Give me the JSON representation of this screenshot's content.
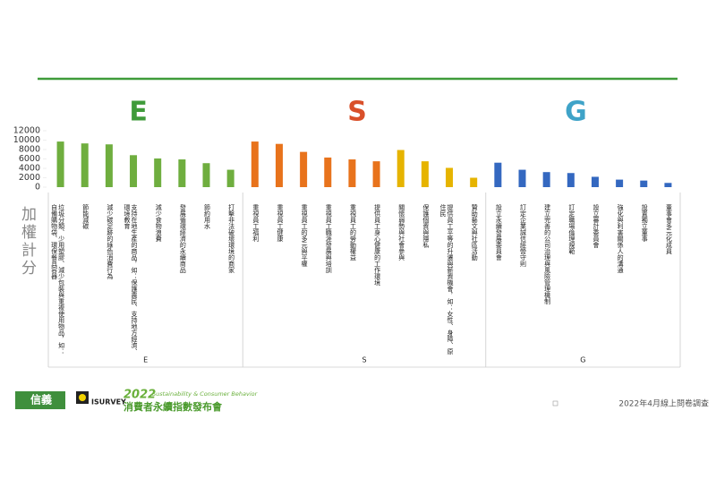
{
  "chart_data": {
    "type": "bar",
    "y_label": "加權計分",
    "ylim": [
      0,
      12000
    ],
    "yticks": [
      0,
      2000,
      4000,
      6000,
      8000,
      10000,
      12000
    ],
    "groups": [
      {
        "name": "E",
        "color": "#3f9b3a",
        "categories": [
          "垃圾分類、少用塑膠、減少包裝與重複使用物品，如：自備購物袋、環保餐具容器",
          "節能減碳",
          "減少碳足跡的綠色消費行為",
          "支持在地生產的商品，如：保護農民、支持地方經濟、環境教育",
          "減少食物浪費",
          "發展循環經濟的永續商品",
          "節約用水",
          "打擊非法破壞環境的商家"
        ],
        "values": [
          9700,
          9300,
          9100,
          6800,
          6100,
          5900,
          5100,
          3700
        ],
        "colors": [
          "#6fae3f",
          "#6fae3f",
          "#6fae3f",
          "#6fae3f",
          "#6fae3f",
          "#6fae3f",
          "#6fae3f",
          "#6fae3f"
        ]
      },
      {
        "name": "S",
        "color": "#d9502a",
        "categories": [
          "重視員工福利",
          "重視員工健康",
          "重視員工的多元與平權",
          "重視員工職涯發展與培訓",
          "重視員工的勞動權益",
          "提供員工身心健康的工作環境",
          "關懷弱勢與社會參與",
          "保護個資與隱私",
          "提供員工平等的升遷與薪資機會，如：女性、身障、原住民",
          "贊助藝文與社區活動"
        ],
        "values": [
          9700,
          9200,
          7500,
          6300,
          5900,
          5500,
          7900,
          5500,
          4100,
          2000
        ],
        "colors": [
          "#e8731c",
          "#e8731c",
          "#e8731c",
          "#e8731c",
          "#e8731c",
          "#e8731c",
          "#e6b400",
          "#e6b400",
          "#e6b400",
          "#e6b400"
        ]
      },
      {
        "name": "G",
        "color": "#3fa3c8",
        "categories": [
          "設立永續發展委員會",
          "訂定企業誠信經營守則",
          "建立完善的公司治理與風險管理機制",
          "訂定職場倫理規範",
          "設立審計委員會",
          "強化與利害關係人的溝通",
          "設置獨立董事",
          "董事會多元化成員"
        ],
        "values": [
          5200,
          3700,
          3200,
          3000,
          2200,
          1600,
          1400,
          900
        ],
        "colors": [
          "#3468c0",
          "#3468c0",
          "#3468c0",
          "#3468c0",
          "#3468c0",
          "#3468c0",
          "#3468c0",
          "#3468c0"
        ]
      }
    ]
  },
  "footer": {
    "logo1": "信義",
    "logo2": "ISURVEY",
    "event_year": "2022",
    "event_en": "Sustainability & Consumer Behavior",
    "event_zh": "消費者永續指數發布會",
    "note": "2022年4月線上問卷調查"
  }
}
